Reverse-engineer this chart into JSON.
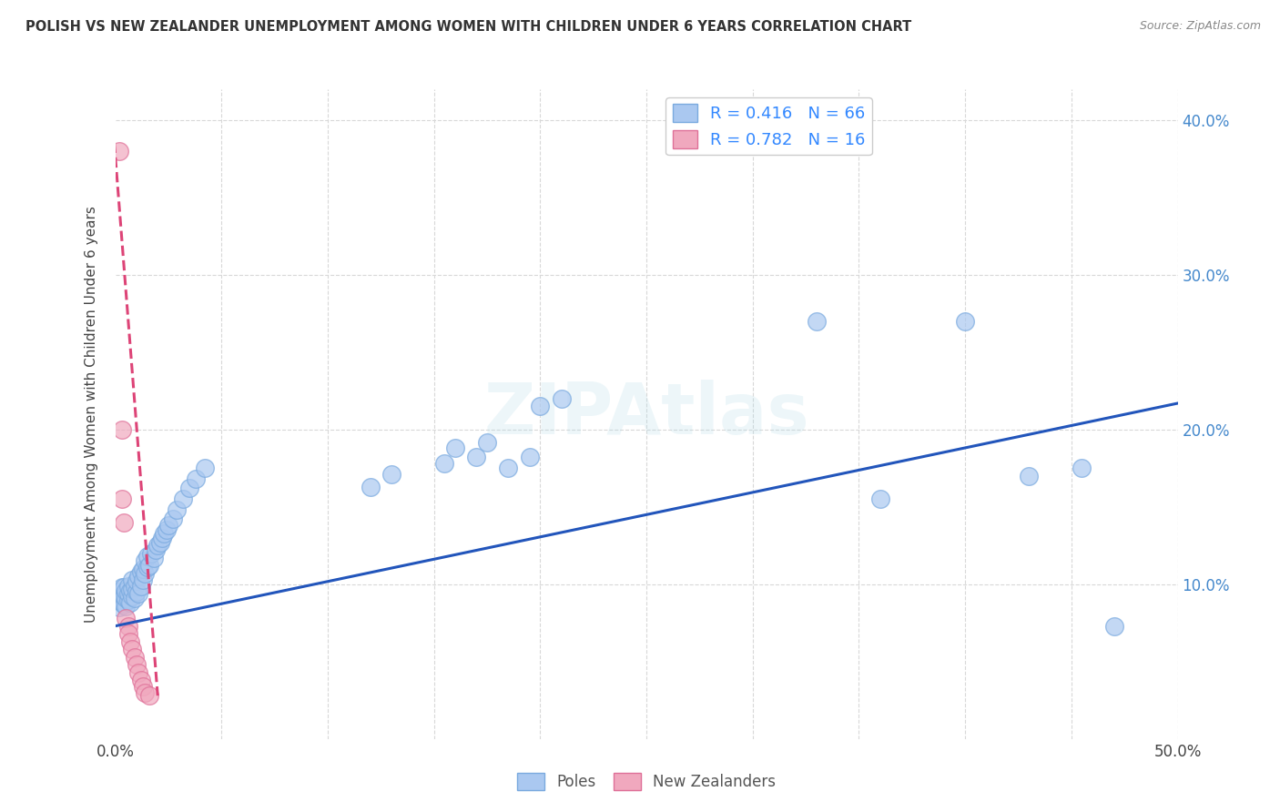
{
  "title": "POLISH VS NEW ZEALANDER UNEMPLOYMENT AMONG WOMEN WITH CHILDREN UNDER 6 YEARS CORRELATION CHART",
  "source": "Source: ZipAtlas.com",
  "ylabel": "Unemployment Among Women with Children Under 6 years",
  "xlim": [
    0,
    0.5
  ],
  "ylim": [
    0,
    0.42
  ],
  "xticks": [
    0.0,
    0.05,
    0.1,
    0.15,
    0.2,
    0.25,
    0.3,
    0.35,
    0.4,
    0.45,
    0.5
  ],
  "yticks": [
    0.0,
    0.1,
    0.2,
    0.3,
    0.4
  ],
  "background_color": "#ffffff",
  "grid_color": "#d8d8d8",
  "poles_color": "#aac8f0",
  "poles_edge_color": "#7aaadf",
  "nz_color": "#f0a8be",
  "nz_edge_color": "#df7098",
  "poles_line_color": "#2255bb",
  "nz_line_color": "#dd4477",
  "poles_R": 0.416,
  "poles_N": 66,
  "nz_R": 0.782,
  "nz_N": 16,
  "poles_scatter_x": [
    0.001,
    0.002,
    0.002,
    0.003,
    0.003,
    0.003,
    0.004,
    0.004,
    0.004,
    0.005,
    0.005,
    0.005,
    0.006,
    0.006,
    0.006,
    0.007,
    0.007,
    0.008,
    0.008,
    0.008,
    0.009,
    0.009,
    0.01,
    0.01,
    0.011,
    0.011,
    0.012,
    0.012,
    0.013,
    0.013,
    0.014,
    0.014,
    0.015,
    0.015,
    0.016,
    0.017,
    0.018,
    0.019,
    0.02,
    0.021,
    0.022,
    0.023,
    0.024,
    0.025,
    0.027,
    0.029,
    0.032,
    0.035,
    0.038,
    0.042,
    0.12,
    0.13,
    0.155,
    0.16,
    0.17,
    0.175,
    0.185,
    0.195,
    0.2,
    0.21,
    0.33,
    0.36,
    0.4,
    0.43,
    0.455,
    0.47
  ],
  "poles_scatter_y": [
    0.09,
    0.085,
    0.095,
    0.088,
    0.093,
    0.098,
    0.087,
    0.092,
    0.098,
    0.086,
    0.091,
    0.096,
    0.09,
    0.094,
    0.099,
    0.088,
    0.096,
    0.092,
    0.097,
    0.103,
    0.091,
    0.099,
    0.095,
    0.102,
    0.094,
    0.105,
    0.099,
    0.108,
    0.103,
    0.11,
    0.107,
    0.115,
    0.111,
    0.118,
    0.112,
    0.12,
    0.117,
    0.122,
    0.125,
    0.127,
    0.13,
    0.133,
    0.135,
    0.138,
    0.142,
    0.148,
    0.155,
    0.162,
    0.168,
    0.175,
    0.163,
    0.171,
    0.178,
    0.188,
    0.182,
    0.192,
    0.175,
    0.182,
    0.215,
    0.22,
    0.27,
    0.155,
    0.27,
    0.17,
    0.175,
    0.073
  ],
  "nz_scatter_x": [
    0.002,
    0.003,
    0.003,
    0.004,
    0.005,
    0.006,
    0.006,
    0.007,
    0.008,
    0.009,
    0.01,
    0.011,
    0.012,
    0.013,
    0.014,
    0.016
  ],
  "nz_scatter_y": [
    0.38,
    0.2,
    0.155,
    0.14,
    0.078,
    0.073,
    0.068,
    0.063,
    0.058,
    0.053,
    0.048,
    0.043,
    0.038,
    0.034,
    0.03,
    0.028
  ],
  "poles_trendline_x": [
    0.0,
    0.5
  ],
  "poles_trendline_y": [
    0.073,
    0.217
  ],
  "nz_trendline_x": [
    -0.001,
    0.02
  ],
  "nz_trendline_y": [
    0.395,
    0.028
  ]
}
